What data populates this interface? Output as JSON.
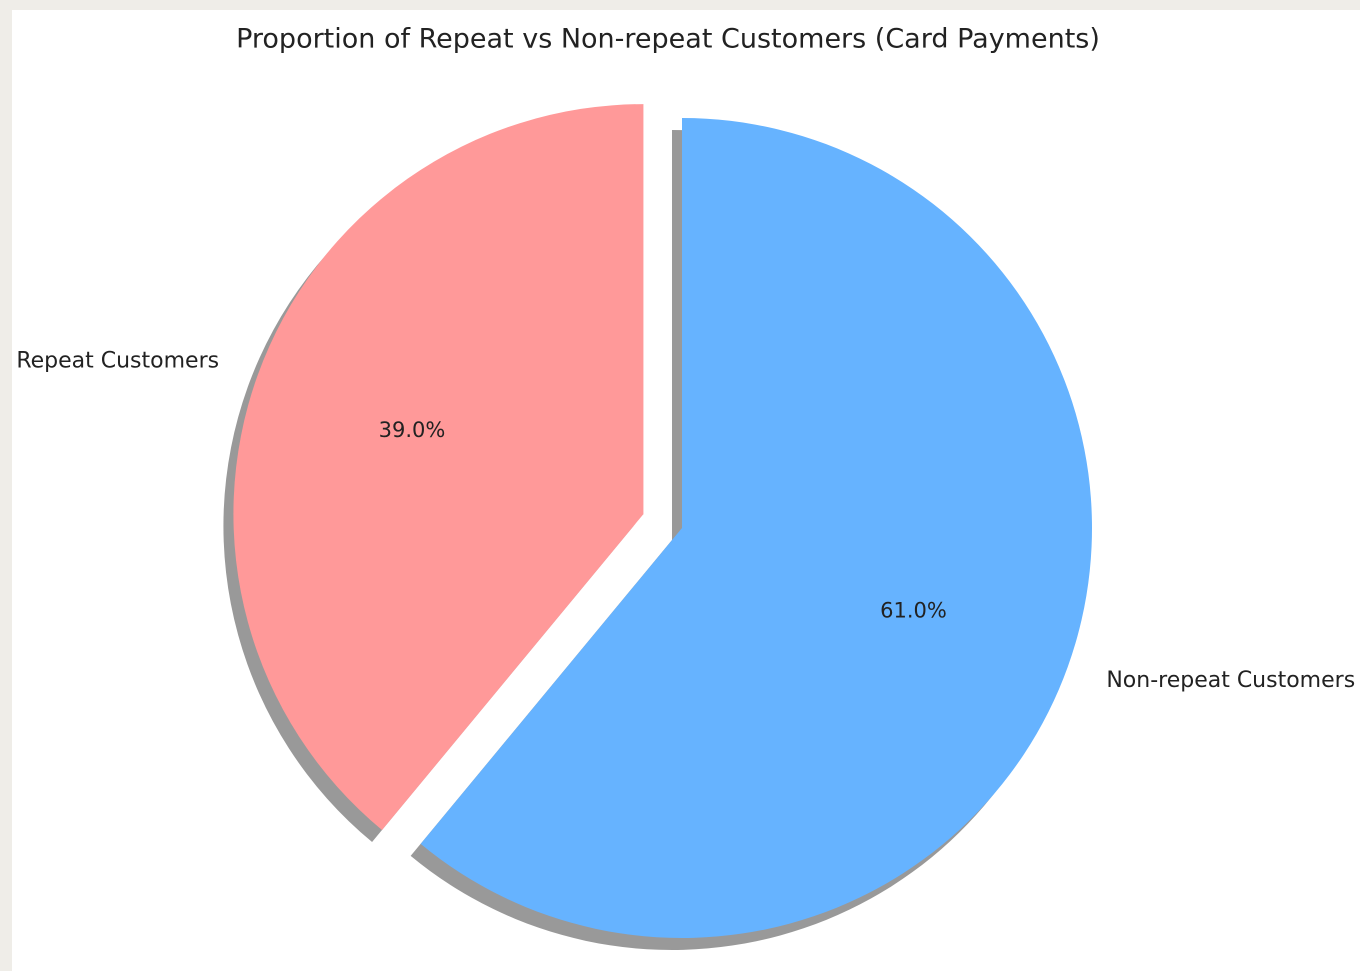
{
  "chart_data": {
    "type": "pie",
    "title": "Proportion of Repeat vs Non-repeat Customers (Card Payments)",
    "categories": [
      "Repeat Customers",
      "Non-repeat Customers"
    ],
    "values": [
      39.0,
      61.0
    ],
    "value_labels": [
      "39.0%",
      "61.0%"
    ],
    "colors": [
      "#ff9999",
      "#66b3ff"
    ],
    "explode": [
      0.1,
      0
    ],
    "start_angle": 90,
    "shadow": true
  }
}
